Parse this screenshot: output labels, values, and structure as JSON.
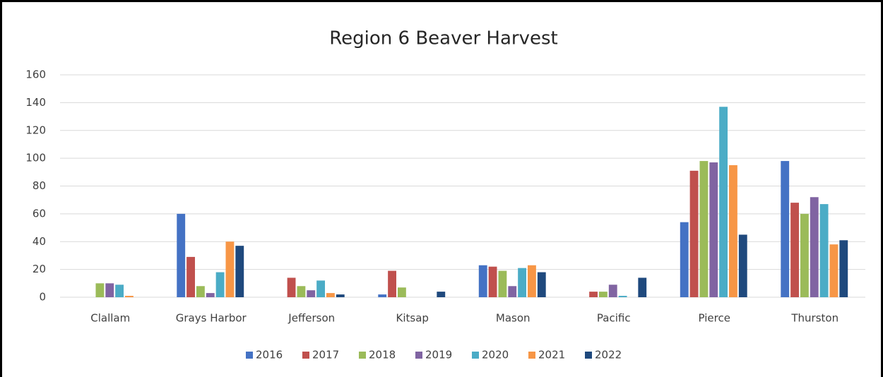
{
  "chart_data": {
    "type": "bar",
    "title": "Region 6 Beaver Harvest",
    "categories": [
      "Clallam",
      "Grays Harbor",
      "Jefferson",
      "Kitsap",
      "Mason",
      "Pacific",
      "Pierce",
      "Thurston"
    ],
    "series": [
      {
        "name": "2016",
        "color": "#4472c4",
        "values": [
          0,
          60,
          0,
          2,
          23,
          0,
          54,
          98
        ]
      },
      {
        "name": "2017",
        "color": "#c0504d",
        "values": [
          0,
          29,
          14,
          19,
          22,
          4,
          91,
          68
        ]
      },
      {
        "name": "2018",
        "color": "#9bbb59",
        "values": [
          10,
          8,
          8,
          7,
          19,
          4,
          98,
          60
        ]
      },
      {
        "name": "2019",
        "color": "#8064a2",
        "values": [
          10,
          3,
          5,
          0,
          8,
          9,
          97,
          72
        ]
      },
      {
        "name": "2020",
        "color": "#4bacc6",
        "values": [
          9,
          18,
          12,
          0,
          21,
          1,
          137,
          67
        ]
      },
      {
        "name": "2021",
        "color": "#f79646",
        "values": [
          1,
          40,
          3,
          0,
          23,
          0,
          95,
          38
        ]
      },
      {
        "name": "2022",
        "color": "#1f497d",
        "values": [
          0,
          37,
          2,
          4,
          18,
          14,
          45,
          41
        ]
      }
    ],
    "ylim": [
      0,
      160
    ],
    "yticks": [
      0,
      20,
      40,
      60,
      80,
      100,
      120,
      140,
      160
    ],
    "grid": true,
    "legend": "bottom"
  }
}
